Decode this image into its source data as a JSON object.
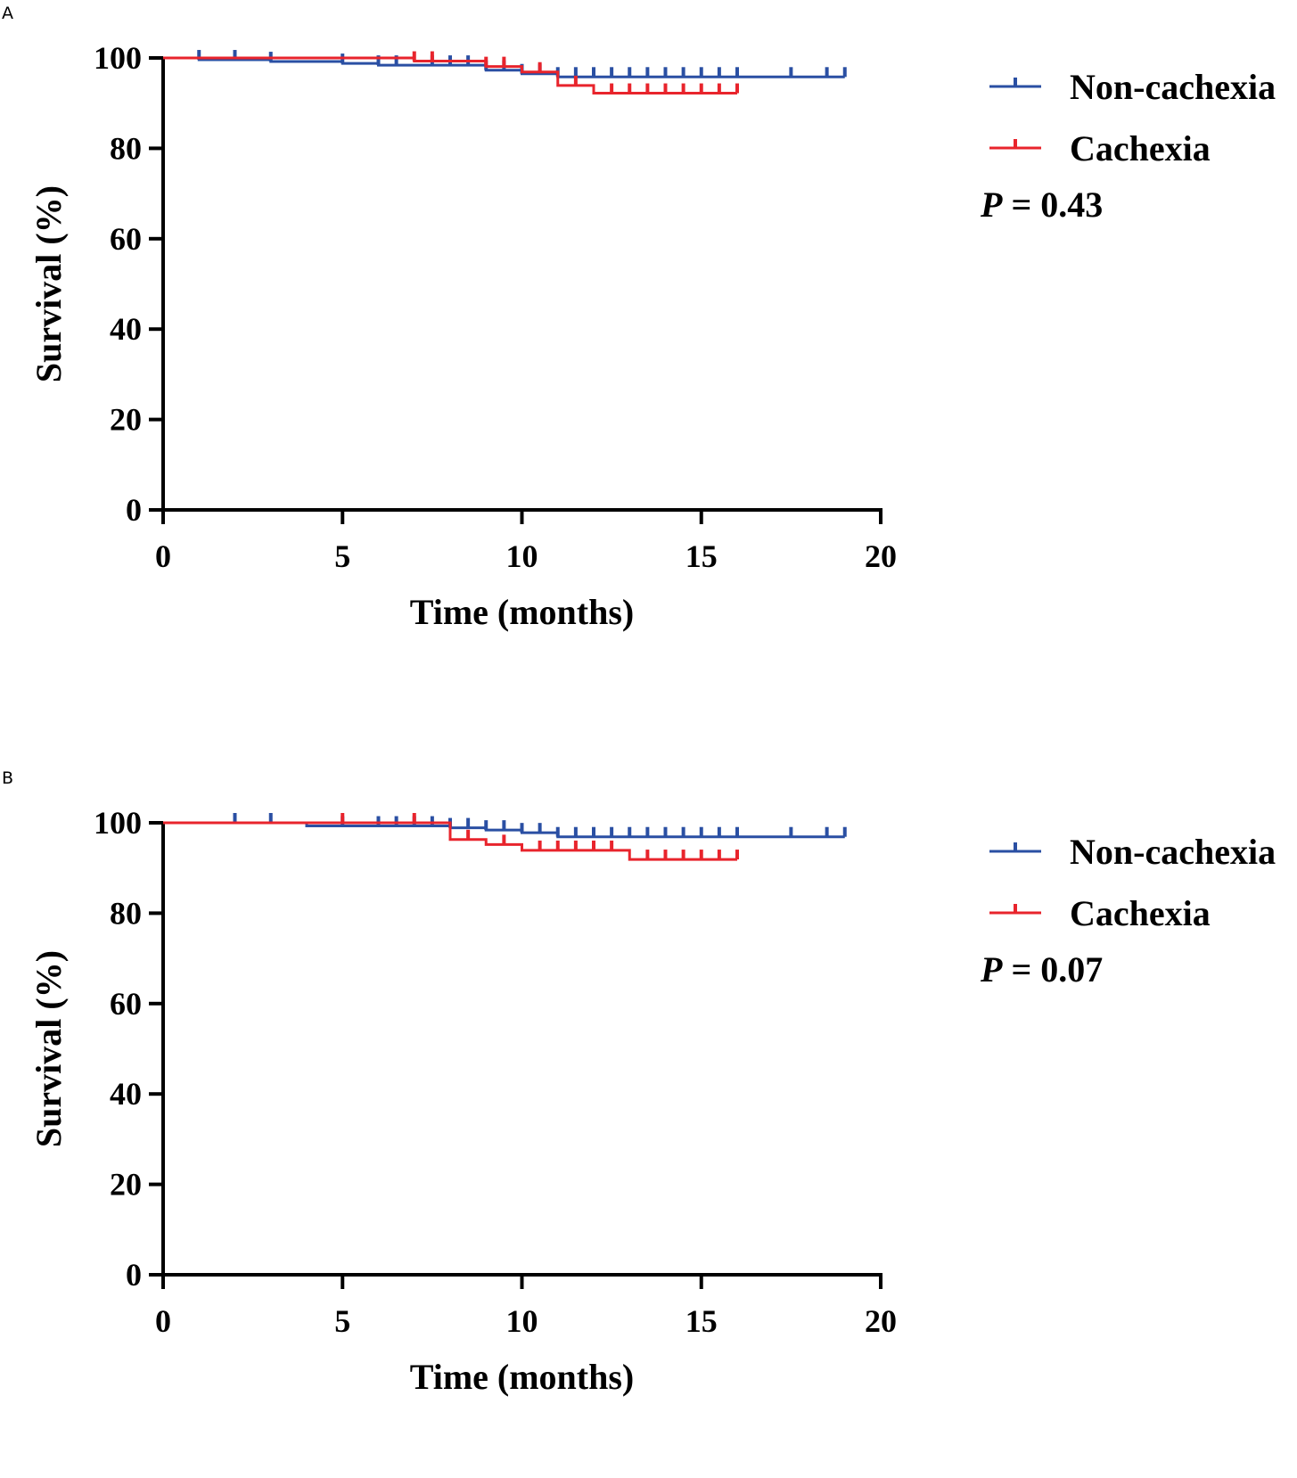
{
  "colors": {
    "non_cachexia": "#2a4fa3",
    "cachexia": "#e8242c",
    "axis": "#000000"
  },
  "chart_data": [
    {
      "panel": "A",
      "type": "line",
      "subtype": "kaplan-meier",
      "xlabel": "Time (months)",
      "ylabel": "Survival (%)",
      "xlim": [
        0,
        20
      ],
      "ylim": [
        0,
        100
      ],
      "xticks": [
        0,
        5,
        10,
        15,
        20
      ],
      "yticks": [
        0,
        20,
        40,
        60,
        80,
        100
      ],
      "legend_position": "right",
      "p_value_label": "P",
      "p_value_text": " = 0.43",
      "series": [
        {
          "name": "Non-cachexia",
          "steps": [
            [
              0,
              100
            ],
            [
              1,
              99.6
            ],
            [
              3,
              99.2
            ],
            [
              5,
              98.8
            ],
            [
              6,
              98.4
            ],
            [
              9,
              97.3
            ],
            [
              10,
              96.5
            ],
            [
              11,
              95.8
            ],
            [
              19,
              95.8
            ]
          ],
          "censored": [
            1,
            2,
            3,
            5,
            6,
            6.5,
            7.5,
            8,
            8.5,
            9,
            9.5,
            10,
            10.5,
            11,
            11.5,
            12,
            12.5,
            13,
            13.5,
            14,
            14.5,
            15,
            15.5,
            16,
            17.5,
            18.5,
            19
          ]
        },
        {
          "name": "Cachexia",
          "steps": [
            [
              0,
              100
            ],
            [
              7,
              99.3
            ],
            [
              9,
              98.1
            ],
            [
              10,
              96.9
            ],
            [
              11,
              93.9
            ],
            [
              12,
              92.2
            ],
            [
              16,
              92.2
            ]
          ],
          "censored": [
            7,
            7.5,
            9,
            9.5,
            10.5,
            11.5,
            12.5,
            13,
            13.5,
            14,
            14.5,
            15,
            15.5,
            16
          ]
        }
      ]
    },
    {
      "panel": "B",
      "type": "line",
      "subtype": "kaplan-meier",
      "xlabel": "Time (months)",
      "ylabel": "Survival (%)",
      "xlim": [
        0,
        20
      ],
      "ylim": [
        0,
        100
      ],
      "xticks": [
        0,
        5,
        10,
        15,
        20
      ],
      "yticks": [
        0,
        20,
        40,
        60,
        80,
        100
      ],
      "legend_position": "right",
      "p_value_label": "P",
      "p_value_text": " = 0.07",
      "series": [
        {
          "name": "Non-cachexia",
          "steps": [
            [
              0,
              100
            ],
            [
              4,
              99.3
            ],
            [
              8,
              98.9
            ],
            [
              9,
              98.4
            ],
            [
              10,
              97.8
            ],
            [
              11,
              96.9
            ],
            [
              19,
              96.9
            ]
          ],
          "censored": [
            2,
            3,
            5,
            6,
            6.5,
            7,
            7.5,
            8,
            8.5,
            9,
            9.5,
            10,
            10.5,
            11,
            11.5,
            12,
            12.5,
            13,
            13.5,
            14,
            14.5,
            15,
            15.5,
            16,
            17.5,
            18.5,
            19
          ]
        },
        {
          "name": "Cachexia",
          "steps": [
            [
              0,
              100
            ],
            [
              8,
              96.3
            ],
            [
              9,
              95.2
            ],
            [
              10,
              93.9
            ],
            [
              13,
              91.9
            ],
            [
              16,
              91.9
            ]
          ],
          "censored": [
            5,
            7,
            8.5,
            9.5,
            10.5,
            11,
            11.5,
            12,
            12.5,
            13.5,
            14,
            14.5,
            15,
            15.5,
            16
          ]
        }
      ]
    }
  ],
  "panels": [
    {
      "label": "A"
    },
    {
      "label": "B"
    }
  ]
}
